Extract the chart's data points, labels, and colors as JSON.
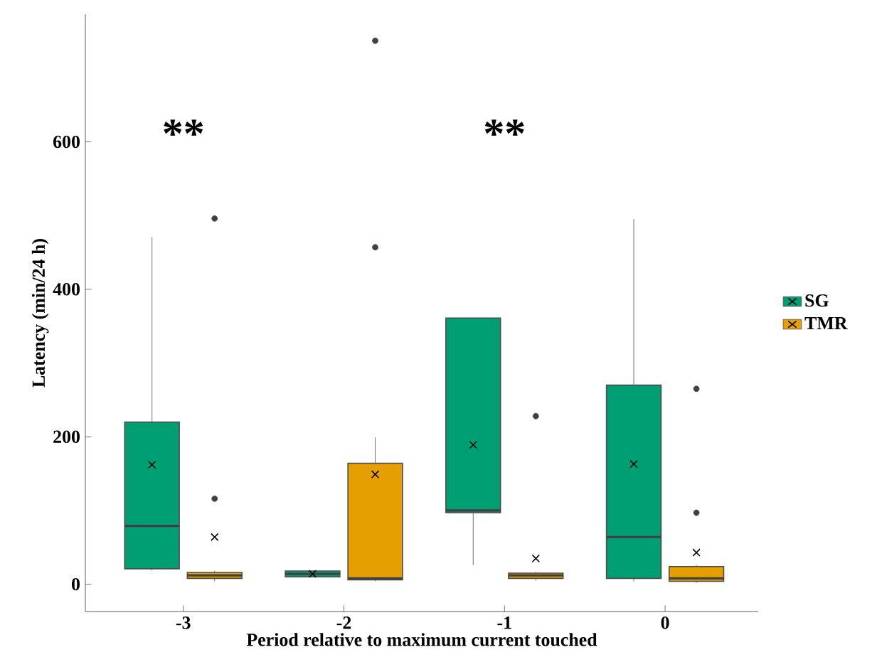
{
  "chart_data": {
    "type": "box",
    "xlabel": "Period relative to maximum current touched",
    "ylabel": "Latency (min/24 h)",
    "categories": [
      "-3",
      "-2",
      "-1",
      "0"
    ],
    "ylim": [
      -37,
      773
    ],
    "yticks": [
      0,
      200,
      400,
      600
    ],
    "grid": false,
    "legend": "right",
    "marker": "cross",
    "series": [
      {
        "name": "SG",
        "color": "#009e73",
        "boxes": [
          {
            "low": 19,
            "q1": 21,
            "median": 79,
            "q3": 220,
            "high": 471,
            "mean": 162
          },
          {
            "low": 10,
            "q1": 10,
            "median": 14,
            "q3": 18,
            "high": 18,
            "mean": 14
          },
          {
            "low": 26,
            "q1": 97,
            "median": 100,
            "q3": 361,
            "high": 361,
            "mean": 189
          },
          {
            "low": 4,
            "q1": 8,
            "median": 64,
            "q3": 270,
            "high": 495,
            "mean": 163
          }
        ]
      },
      {
        "name": "TMR",
        "color": "#e69f00",
        "boxes": [
          {
            "low": 4,
            "q1": 8,
            "median": 12,
            "q3": 16,
            "high": 18,
            "mean": 64,
            "outliers": [
              116,
              496
            ]
          },
          {
            "low": 4,
            "q1": 6,
            "median": 8,
            "q3": 164,
            "high": 199,
            "mean": 149,
            "outliers": [
              457,
              737
            ]
          },
          {
            "low": 5,
            "q1": 8,
            "median": 12,
            "q3": 15,
            "high": 17,
            "mean": 35,
            "outliers": [
              228
            ]
          },
          {
            "low": 2,
            "q1": 4,
            "median": 8,
            "q3": 24,
            "high": 26,
            "mean": 43,
            "outliers": [
              97,
              265
            ]
          }
        ]
      }
    ],
    "annotations": [
      "**",
      "**"
    ]
  }
}
